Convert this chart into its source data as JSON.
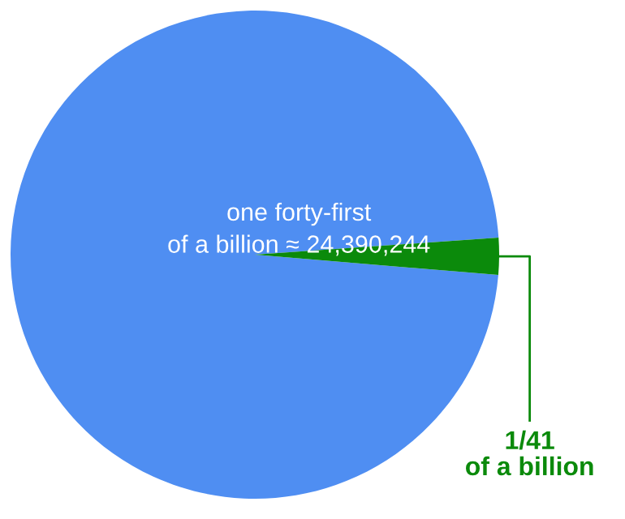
{
  "chart_data": {
    "type": "pie",
    "categories": [
      null,
      "1/41\nof a billion"
    ],
    "values": [
      97.561,
      2.439
    ],
    "colors": [
      "#4f8ef2",
      "#0b8a0b"
    ],
    "annotations": [
      "one forty-first\nof a billion ≈ 24,390,244"
    ],
    "legend": false
  }
}
